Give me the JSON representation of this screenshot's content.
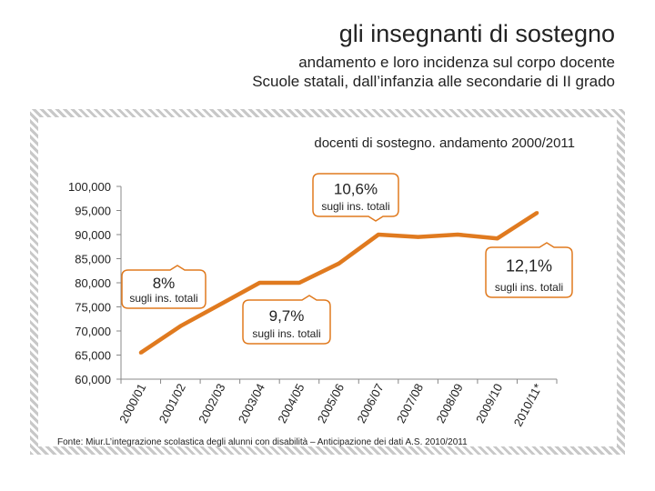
{
  "header": {
    "title": "gli insegnanti di sostegno",
    "subtitle_line1": "andamento e loro incidenza sul corpo docente",
    "subtitle_line2": "Scuole statali, dall’infanzia alle secondarie di II grado"
  },
  "source_note": "Fonte: Miur.L’integrazione scolastica degli alunni con disabilità – Anticipazione dei dati A.S. 2010/2011",
  "colors": {
    "line": "#e07a1f",
    "axis": "#888888",
    "frame_stripe": "#c8c8c8"
  },
  "chart_data": {
    "type": "line",
    "title": "docenti di sostegno. andamento 2000/2011",
    "xlabel": "",
    "ylabel": "",
    "categories": [
      "2000/01",
      "2001/02",
      "2002/03",
      "2003/04",
      "2004/05",
      "2005/06",
      "2006/07",
      "2007/08",
      "2008/09",
      "2009/10",
      "2010/11*"
    ],
    "values": [
      65500,
      71000,
      75500,
      80000,
      80000,
      84000,
      90000,
      89500,
      90000,
      89200,
      94500
    ],
    "ylim": [
      60000,
      100000
    ],
    "yticks": [
      60000,
      65000,
      70000,
      75000,
      80000,
      85000,
      90000,
      95000,
      100000
    ],
    "ytick_labels": [
      "60,000",
      "65,000",
      "70,000",
      "75,000",
      "80,000",
      "85,000",
      "90,000",
      "95,000",
      "100,000"
    ],
    "grid": false,
    "callouts": [
      {
        "value": "8%",
        "text": "sugli ins. totali",
        "category": "2000/01"
      },
      {
        "value": "9,7%",
        "text": "sugli ins. totali",
        "category": "2004/05"
      },
      {
        "value": "10,6%",
        "text": "sugli ins. totali",
        "category": "2006/07"
      },
      {
        "value": "12,1%",
        "text": "sugli ins. totali",
        "category": "2010/11*"
      }
    ]
  }
}
